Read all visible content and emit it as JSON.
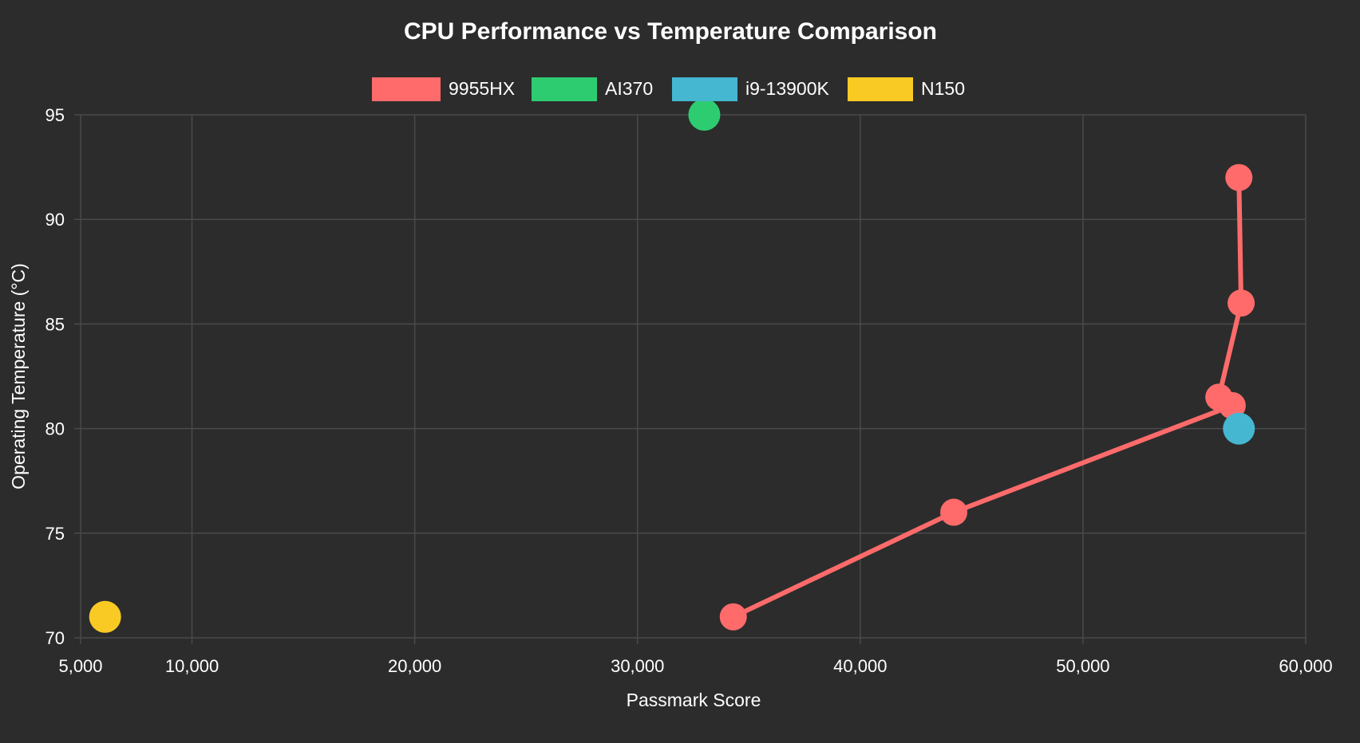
{
  "colors": {
    "background": "#2c2c2c",
    "grid": "#4a4a4a",
    "text": "#ffffff"
  },
  "chart_data": {
    "type": "scatter",
    "title": "CPU Performance vs Temperature Comparison",
    "xlabel": "Passmark Score",
    "ylabel": "Operating Temperature (°C)",
    "xlim": [
      5000,
      60000
    ],
    "ylim": [
      70,
      95
    ],
    "x_ticks": [
      5000,
      10000,
      20000,
      30000,
      40000,
      50000,
      60000
    ],
    "x_tick_labels": [
      "5,000",
      "10,000",
      "20,000",
      "30,000",
      "40,000",
      "50,000",
      "60,000"
    ],
    "y_ticks": [
      70,
      75,
      80,
      85,
      90,
      95
    ],
    "y_tick_labels": [
      "70",
      "75",
      "80",
      "85",
      "90",
      "95"
    ],
    "grid": true,
    "legend_position": "top-center",
    "series": [
      {
        "name": "9955HX",
        "color": "#ff6b6b",
        "connected": true,
        "points": [
          {
            "x": 34300,
            "y": 71
          },
          {
            "x": 44200,
            "y": 76
          },
          {
            "x": 56700,
            "y": 81.1
          },
          {
            "x": 56100,
            "y": 81.5
          },
          {
            "x": 57100,
            "y": 86
          },
          {
            "x": 57000,
            "y": 92
          }
        ]
      },
      {
        "name": "AI370",
        "color": "#2ecc71",
        "connected": false,
        "points": [
          {
            "x": 33000,
            "y": 95
          }
        ]
      },
      {
        "name": "i9-13900K",
        "color": "#45b7d1",
        "connected": false,
        "points": [
          {
            "x": 57000,
            "y": 80
          }
        ]
      },
      {
        "name": "N150",
        "color": "#f9ca24",
        "connected": false,
        "points": [
          {
            "x": 6100,
            "y": 71
          }
        ]
      }
    ]
  }
}
